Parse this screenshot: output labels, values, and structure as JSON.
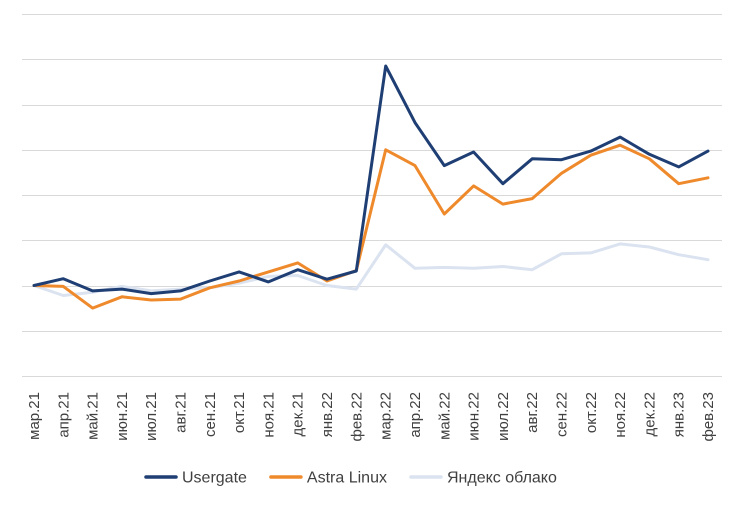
{
  "chart_data": {
    "type": "line",
    "categories": [
      "мар.21",
      "апр.21",
      "май.21",
      "июн.21",
      "июл.21",
      "авг.21",
      "сен.21",
      "окт.21",
      "ноя.21",
      "дек.21",
      "янв.22",
      "фев.22",
      "мар.22",
      "апр.22",
      "май.22",
      "июн.22",
      "июл.22",
      "авг.22",
      "сен.22",
      "окт.22",
      "ноя.22",
      "дек.22",
      "янв.23",
      "фев.23"
    ],
    "series": [
      {
        "name": "Usergate",
        "color": "#1f3f74",
        "values": [
          0,
          0.15,
          -0.12,
          -0.08,
          -0.18,
          -0.12,
          0.1,
          0.3,
          0.08,
          0.35,
          0.14,
          0.32,
          4.85,
          3.6,
          2.65,
          2.95,
          2.25,
          2.8,
          2.78,
          2.97,
          3.28,
          2.9,
          2.62,
          2.97
        ]
      },
      {
        "name": "Astra Linux",
        "color": "#ef8a2c",
        "values": [
          0,
          -0.02,
          -0.5,
          -0.25,
          -0.32,
          -0.3,
          -0.05,
          0.1,
          0.3,
          0.5,
          0.1,
          0.33,
          3.0,
          2.65,
          1.58,
          2.2,
          1.8,
          1.92,
          2.48,
          2.88,
          3.1,
          2.8,
          2.25,
          2.38
        ]
      },
      {
        "name": "Яндекс облако",
        "color": "#dbe3f0",
        "values": [
          0,
          -0.22,
          -0.15,
          -0.02,
          -0.12,
          -0.08,
          -0.05,
          0.05,
          0.2,
          0.22,
          0.0,
          -0.08,
          0.9,
          0.38,
          0.4,
          0.38,
          0.42,
          0.35,
          0.7,
          0.72,
          0.92,
          0.85,
          0.68,
          0.57
        ]
      }
    ],
    "ylim": [
      -2,
      6
    ],
    "gridlines": [
      -2,
      -1,
      0,
      1,
      2,
      3,
      4,
      5,
      6
    ],
    "grid": true,
    "legend_position": "bottom"
  }
}
